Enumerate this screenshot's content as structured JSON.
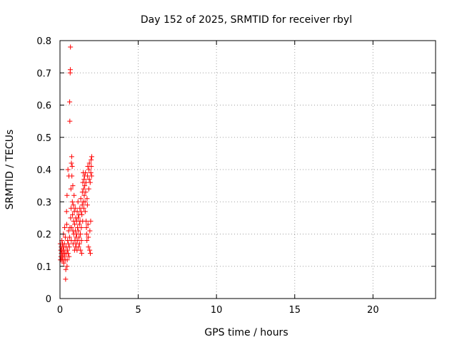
{
  "chart_data": {
    "type": "scatter",
    "title": "Day 152 of 2025, SRMTID for receiver rbyl",
    "xlabel": "GPS time / hours",
    "ylabel": "SRMTID / TECUs",
    "xlim": [
      0,
      24
    ],
    "ylim": [
      0,
      0.8
    ],
    "xticks": [
      0,
      5,
      10,
      15,
      20
    ],
    "yticks": [
      0,
      0.1,
      0.2,
      0.3,
      0.4,
      0.5,
      0.6,
      0.7,
      0.8
    ],
    "grid": true,
    "marker": "+",
    "series": [
      {
        "name": "rbyl",
        "color": "#ff0000",
        "points": [
          [
            0.02,
            0.17
          ],
          [
            0.03,
            0.12
          ],
          [
            0.05,
            0.15
          ],
          [
            0.06,
            0.13
          ],
          [
            0.08,
            0.16
          ],
          [
            0.09,
            0.14
          ],
          [
            0.1,
            0.12
          ],
          [
            0.12,
            0.18
          ],
          [
            0.13,
            0.15
          ],
          [
            0.15,
            0.13
          ],
          [
            0.16,
            0.17
          ],
          [
            0.18,
            0.12
          ],
          [
            0.19,
            0.14
          ],
          [
            0.21,
            0.16
          ],
          [
            0.22,
            0.2
          ],
          [
            0.24,
            0.11
          ],
          [
            0.25,
            0.15
          ],
          [
            0.27,
            0.13
          ],
          [
            0.28,
            0.17
          ],
          [
            0.3,
            0.22
          ],
          [
            0.31,
            0.14
          ],
          [
            0.33,
            0.12
          ],
          [
            0.34,
            0.19
          ],
          [
            0.36,
            0.06
          ],
          [
            0.37,
            0.09
          ],
          [
            0.39,
            0.16
          ],
          [
            0.4,
            0.14
          ],
          [
            0.42,
            0.27
          ],
          [
            0.43,
            0.23
          ],
          [
            0.45,
            0.1
          ],
          [
            0.45,
            0.32
          ],
          [
            0.46,
            0.12
          ],
          [
            0.48,
            0.15
          ],
          [
            0.49,
            0.18
          ],
          [
            0.51,
            0.4
          ],
          [
            0.52,
            0.14
          ],
          [
            0.54,
            0.17
          ],
          [
            0.55,
            0.21
          ],
          [
            0.57,
            0.38
          ],
          [
            0.58,
            0.13
          ],
          [
            0.6,
            0.16
          ],
          [
            0.61,
            0.19
          ],
          [
            0.62,
            0.61
          ],
          [
            0.63,
            0.55
          ],
          [
            0.64,
            0.22
          ],
          [
            0.65,
            0.7
          ],
          [
            0.66,
            0.71
          ],
          [
            0.67,
            0.78
          ],
          [
            0.68,
            0.25
          ],
          [
            0.7,
            0.34
          ],
          [
            0.71,
            0.28
          ],
          [
            0.72,
            0.18
          ],
          [
            0.73,
            0.42
          ],
          [
            0.74,
            0.22
          ],
          [
            0.75,
            0.44
          ],
          [
            0.76,
            0.38
          ],
          [
            0.78,
            0.41
          ],
          [
            0.79,
            0.3
          ],
          [
            0.8,
            0.26
          ],
          [
            0.82,
            0.35
          ],
          [
            0.83,
            0.21
          ],
          [
            0.84,
            0.17
          ],
          [
            0.86,
            0.29
          ],
          [
            0.87,
            0.24
          ],
          [
            0.88,
            0.2
          ],
          [
            0.9,
            0.32
          ],
          [
            0.91,
            0.27
          ],
          [
            0.93,
            0.15
          ],
          [
            0.94,
            0.23
          ],
          [
            0.95,
            0.18
          ],
          [
            0.97,
            0.28
          ],
          [
            0.98,
            0.21
          ],
          [
            1.0,
            0.16
          ],
          [
            1.01,
            0.25
          ],
          [
            1.03,
            0.19
          ],
          [
            1.04,
            0.17
          ],
          [
            1.06,
            0.24
          ],
          [
            1.07,
            0.2
          ],
          [
            1.09,
            0.15
          ],
          [
            1.1,
            0.27
          ],
          [
            1.12,
            0.22
          ],
          [
            1.13,
            0.18
          ],
          [
            1.15,
            0.3
          ],
          [
            1.16,
            0.25
          ],
          [
            1.18,
            0.21
          ],
          [
            1.19,
            0.16
          ],
          [
            1.21,
            0.26
          ],
          [
            1.22,
            0.19
          ],
          [
            1.24,
            0.23
          ],
          [
            1.25,
            0.17
          ],
          [
            1.27,
            0.28
          ],
          [
            1.28,
            0.24
          ],
          [
            1.3,
            0.2
          ],
          [
            1.31,
            0.15
          ],
          [
            1.33,
            0.31
          ],
          [
            1.34,
            0.27
          ],
          [
            1.36,
            0.22
          ],
          [
            1.37,
            0.18
          ],
          [
            1.39,
            0.14
          ],
          [
            1.4,
            0.26
          ],
          [
            1.42,
            0.29
          ],
          [
            1.43,
            0.33
          ],
          [
            1.45,
            0.24
          ],
          [
            1.46,
            0.36
          ],
          [
            1.48,
            0.3
          ],
          [
            1.49,
            0.39
          ],
          [
            1.51,
            0.34
          ],
          [
            1.52,
            0.28
          ],
          [
            1.54,
            0.37
          ],
          [
            1.55,
            0.32
          ],
          [
            1.57,
            0.38
          ],
          [
            1.58,
            0.35
          ],
          [
            1.6,
            0.3
          ],
          [
            1.61,
            0.27
          ],
          [
            1.63,
            0.39
          ],
          [
            1.64,
            0.33
          ],
          [
            1.66,
            0.36
          ],
          [
            1.67,
            0.24
          ],
          [
            1.69,
            0.22
          ],
          [
            1.7,
            0.2
          ],
          [
            1.72,
            0.18
          ],
          [
            1.73,
            0.31
          ],
          [
            1.75,
            0.29
          ],
          [
            1.76,
            0.38
          ],
          [
            1.78,
            0.41
          ],
          [
            1.79,
            0.23
          ],
          [
            1.81,
            0.19
          ],
          [
            1.82,
            0.16
          ],
          [
            1.84,
            0.34
          ],
          [
            1.85,
            0.4
          ],
          [
            1.87,
            0.37
          ],
          [
            1.88,
            0.42
          ],
          [
            1.9,
            0.15
          ],
          [
            1.91,
            0.21
          ],
          [
            1.93,
            0.36
          ],
          [
            1.94,
            0.14
          ],
          [
            1.96,
            0.24
          ],
          [
            1.97,
            0.39
          ],
          [
            1.99,
            0.43
          ],
          [
            2.0,
            0.41
          ],
          [
            2.02,
            0.38
          ],
          [
            2.03,
            0.44
          ]
        ]
      }
    ]
  }
}
